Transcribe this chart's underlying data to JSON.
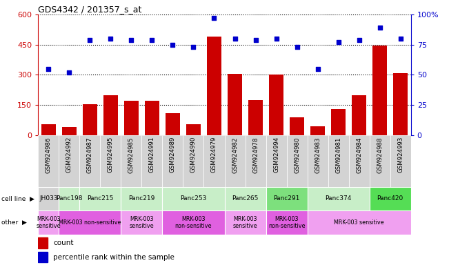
{
  "title": "GDS4342 / 201357_s_at",
  "samples": [
    "GSM924986",
    "GSM924992",
    "GSM924987",
    "GSM924995",
    "GSM924985",
    "GSM924991",
    "GSM924989",
    "GSM924990",
    "GSM924979",
    "GSM924982",
    "GSM924978",
    "GSM924994",
    "GSM924980",
    "GSM924983",
    "GSM924981",
    "GSM924984",
    "GSM924988",
    "GSM924993"
  ],
  "counts": [
    55,
    40,
    155,
    200,
    170,
    170,
    110,
    55,
    490,
    305,
    175,
    300,
    90,
    45,
    130,
    200,
    445,
    310
  ],
  "percentiles": [
    55,
    52,
    79,
    80,
    79,
    79,
    75,
    73,
    97,
    80,
    79,
    80,
    73,
    55,
    77,
    79,
    89,
    80
  ],
  "cell_lines": [
    {
      "name": "JH033",
      "start": 0,
      "end": 1,
      "color": "#d3d3d3"
    },
    {
      "name": "Panc198",
      "start": 1,
      "end": 2,
      "color": "#c8eec8"
    },
    {
      "name": "Panc215",
      "start": 2,
      "end": 4,
      "color": "#c8eec8"
    },
    {
      "name": "Panc219",
      "start": 4,
      "end": 6,
      "color": "#c8eec8"
    },
    {
      "name": "Panc253",
      "start": 6,
      "end": 9,
      "color": "#c8eec8"
    },
    {
      "name": "Panc265",
      "start": 9,
      "end": 11,
      "color": "#c8eec8"
    },
    {
      "name": "Panc291",
      "start": 11,
      "end": 13,
      "color": "#7de07d"
    },
    {
      "name": "Panc374",
      "start": 13,
      "end": 16,
      "color": "#c8eec8"
    },
    {
      "name": "Panc420",
      "start": 16,
      "end": 18,
      "color": "#55dd55"
    }
  ],
  "other_rows": [
    {
      "label": "MRK-003\nsensitive",
      "start": 0,
      "end": 1,
      "color": "#f0a0f0"
    },
    {
      "label": "MRK-003 non-sensitive",
      "start": 1,
      "end": 4,
      "color": "#e060e0"
    },
    {
      "label": "MRK-003\nsensitive",
      "start": 4,
      "end": 6,
      "color": "#f0a0f0"
    },
    {
      "label": "MRK-003\nnon-sensitive",
      "start": 6,
      "end": 9,
      "color": "#e060e0"
    },
    {
      "label": "MRK-003\nsensitive",
      "start": 9,
      "end": 11,
      "color": "#f0a0f0"
    },
    {
      "label": "MRK-003\nnon-sensitive",
      "start": 11,
      "end": 13,
      "color": "#e060e0"
    },
    {
      "label": "MRK-003 sensitive",
      "start": 13,
      "end": 18,
      "color": "#f0a0f0"
    }
  ],
  "ylim_left": [
    0,
    600
  ],
  "ylim_right": [
    0,
    100
  ],
  "yticks_left": [
    0,
    150,
    300,
    450,
    600
  ],
  "yticks_right": [
    0,
    25,
    50,
    75,
    100
  ],
  "bar_color": "#cc0000",
  "dot_color": "#0000cc",
  "tick_bg_color": "#d3d3d3"
}
